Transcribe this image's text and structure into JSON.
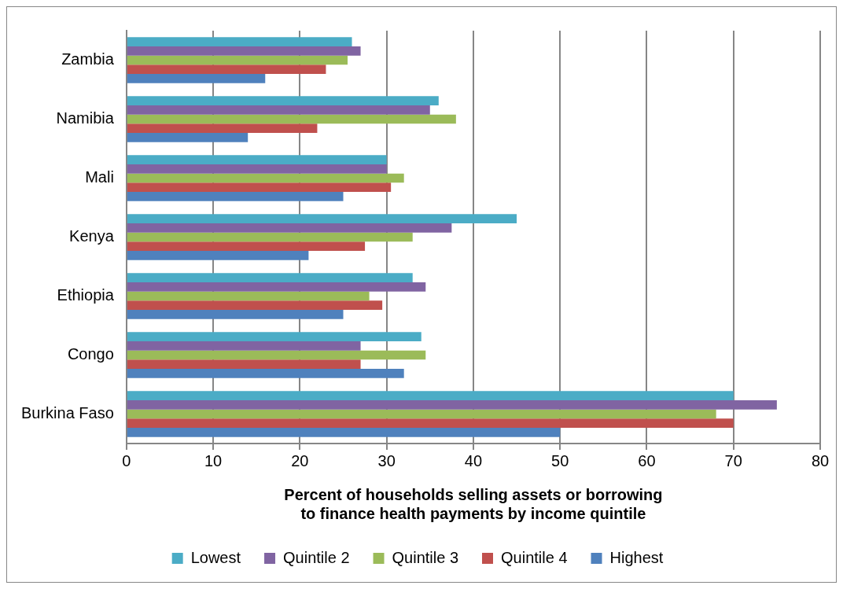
{
  "chart_data": {
    "type": "bar",
    "orientation": "horizontal",
    "categories": [
      "Zambia",
      "Namibia",
      "Mali",
      "Kenya",
      "Ethiopia",
      "Congo",
      "Burkina Faso"
    ],
    "series": [
      {
        "name": "Lowest",
        "color": "#4bacc6",
        "values": [
          26,
          36,
          30,
          45,
          33,
          34,
          70
        ]
      },
      {
        "name": "Quintile 2",
        "color": "#8064a2",
        "values": [
          27,
          35,
          30,
          37.5,
          34.5,
          27,
          75
        ]
      },
      {
        "name": "Quintile 3",
        "color": "#9bbb59",
        "values": [
          25.5,
          38,
          32,
          33,
          28,
          34.5,
          68
        ]
      },
      {
        "name": "Quintile 4",
        "color": "#c0504d",
        "values": [
          23,
          22,
          30.5,
          27.5,
          29.5,
          27,
          70
        ]
      },
      {
        "name": "Highest",
        "color": "#4f81bd",
        "values": [
          16,
          14,
          25,
          21,
          25,
          32,
          50
        ]
      }
    ],
    "xlabel": "Percent of households selling assets or borrowing\nto finance health payments by income quintile",
    "xlim": [
      0,
      80
    ],
    "xticks": [
      0,
      10,
      20,
      30,
      40,
      50,
      60,
      70,
      80
    ],
    "grid": "x",
    "legend": "bottom"
  }
}
